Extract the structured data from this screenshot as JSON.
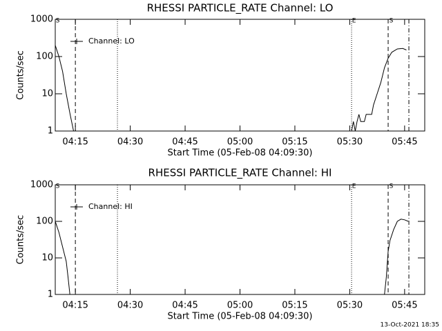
{
  "chart_data": [
    {
      "type": "line",
      "title": "RHESSI PARTICLE_RATE Channel: LO",
      "xlabel": "Start Time (05-Feb-08 04:09:30)",
      "ylabel": "Counts/sec",
      "xlim": [
        "04:09:30",
        "05:50:30"
      ],
      "xticks": [
        "04:15",
        "04:30",
        "04:45",
        "05:00",
        "05:15",
        "05:30",
        "05:45"
      ],
      "ylim": [
        1,
        1000
      ],
      "yticks": [
        1,
        10,
        100,
        1000
      ],
      "log_y": true,
      "legend": "upper left",
      "x": [
        "04:09:30",
        "04:10:30",
        "04:11:30",
        "04:12:30",
        "04:13:30",
        "04:14:30",
        "05:00:00",
        "05:30:30",
        "05:31:00",
        "05:31:30",
        "05:32:00",
        "05:32:30",
        "05:33:00",
        "05:34:00",
        "05:34:30",
        "05:36:00",
        "05:36:30",
        "05:37:30",
        "05:38:30",
        "05:39:30",
        "05:40:30",
        "05:41:30",
        "05:43:00",
        "05:44:30",
        "05:45:30"
      ],
      "series": [
        {
          "name": "Channel: LO",
          "color": "#000000",
          "values": [
            200,
            100,
            40,
            10,
            3,
            1,
            null,
            1,
            1.8,
            1,
            1.8,
            2.8,
            1.8,
            1.8,
            2.8,
            2.8,
            5,
            10,
            20,
            50,
            90,
            130,
            160,
            165,
            150
          ]
        }
      ],
      "event_lines": [
        {
          "x": "04:15:00",
          "style": "dashed"
        },
        {
          "x": "04:26:30",
          "style": "dotted"
        },
        {
          "x": "05:30:30",
          "style": "dotted"
        },
        {
          "x": "05:40:30",
          "style": "dashed"
        },
        {
          "x": "05:46:10",
          "style": "dashdot"
        }
      ],
      "event_labels": [
        {
          "x": "04:10:10",
          "text": "S"
        },
        {
          "x": "05:31:10",
          "text": "E"
        },
        {
          "x": "05:41:20",
          "text": "S"
        }
      ]
    },
    {
      "type": "line",
      "title": "RHESSI PARTICLE_RATE Channel: HI",
      "xlabel": "Start Time (05-Feb-08 04:09:30)",
      "ylabel": "Counts/sec",
      "xlim": [
        "04:09:30",
        "05:50:30"
      ],
      "xticks": [
        "04:15",
        "04:30",
        "04:45",
        "05:00",
        "05:15",
        "05:30",
        "05:45"
      ],
      "ylim": [
        1,
        1000
      ],
      "yticks": [
        1,
        10,
        100,
        1000
      ],
      "log_y": true,
      "legend": "upper left",
      "x": [
        "04:09:30",
        "04:10:30",
        "04:11:30",
        "04:12:30",
        "04:13:00",
        "04:13:30",
        "05:00:00",
        "05:39:30",
        "05:40:00",
        "05:40:30",
        "05:41:00",
        "05:42:00",
        "05:43:00",
        "05:44:00",
        "05:45:00",
        "05:46:00"
      ],
      "series": [
        {
          "name": "Channel: HI",
          "color": "#000000",
          "values": [
            100,
            50,
            20,
            8,
            3,
            1,
            null,
            1,
            3,
            15,
            30,
            60,
            100,
            115,
            110,
            100
          ]
        }
      ],
      "event_lines": [
        {
          "x": "04:15:00",
          "style": "dashed"
        },
        {
          "x": "04:26:30",
          "style": "dotted"
        },
        {
          "x": "05:30:30",
          "style": "dotted"
        },
        {
          "x": "05:40:30",
          "style": "dashed"
        },
        {
          "x": "05:46:10",
          "style": "dashdot"
        }
      ],
      "event_labels": [
        {
          "x": "04:10:10",
          "text": "S"
        },
        {
          "x": "05:31:10",
          "text": "E"
        },
        {
          "x": "05:41:20",
          "text": "S"
        }
      ]
    }
  ],
  "footer": "13-Oct-2021 18:35"
}
